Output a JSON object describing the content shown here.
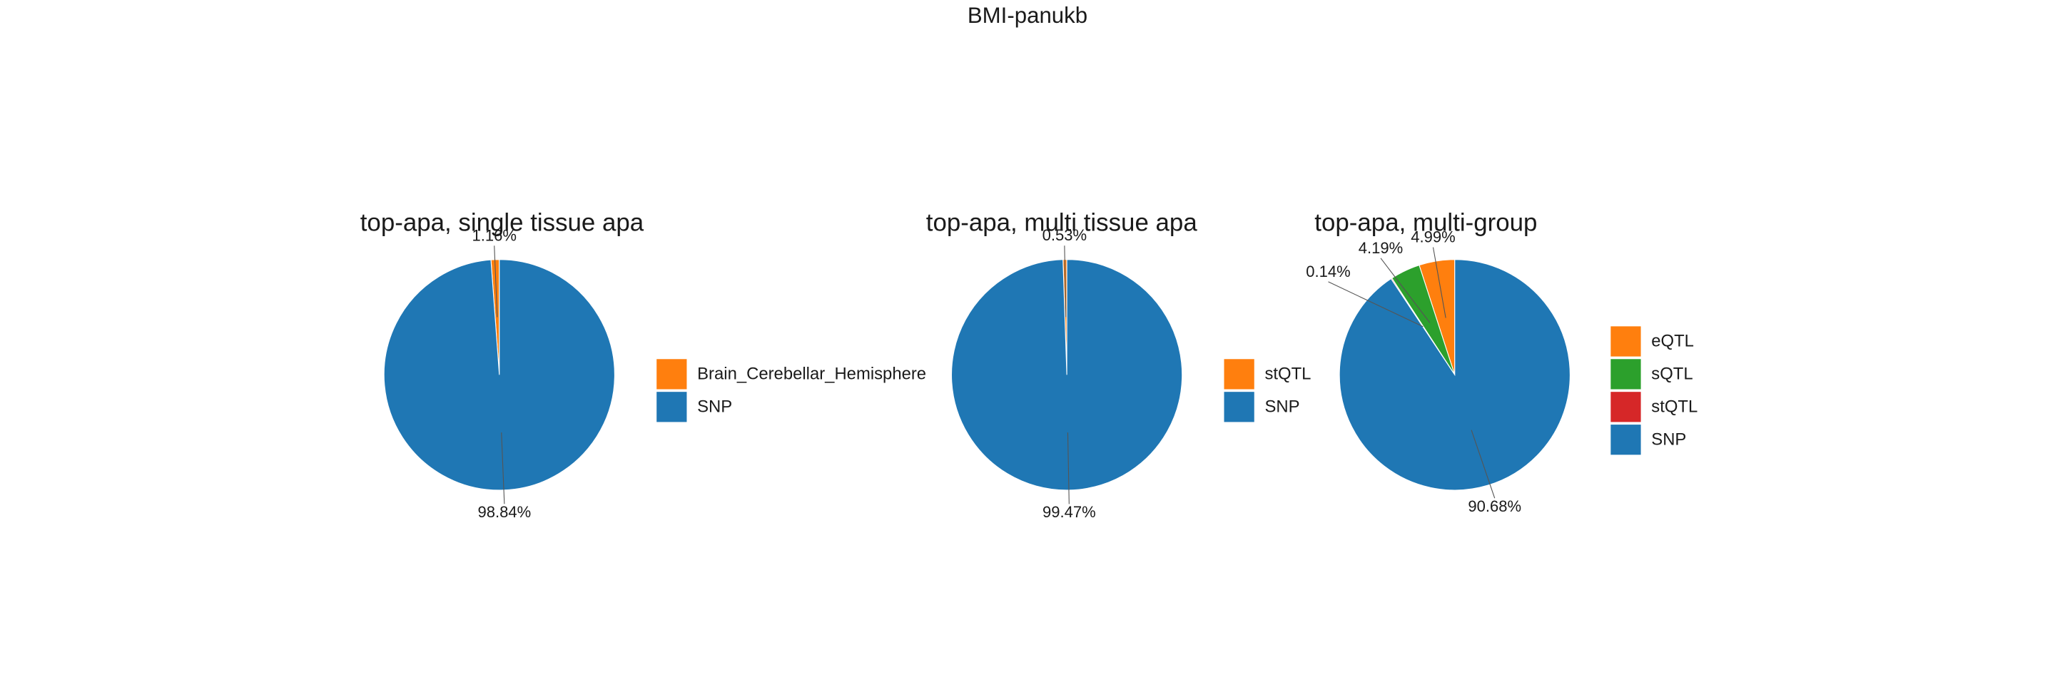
{
  "title": "BMI-panukb",
  "chart_data": [
    {
      "type": "pie",
      "title": "top-apa, single tissue apa",
      "categories": [
        "Brain_Cerebellar_Hemisphere",
        "SNP"
      ],
      "values": [
        1.16,
        98.84
      ],
      "value_labels": [
        "1.16%",
        "98.84%"
      ],
      "colors": [
        "#ff7f0e",
        "#1f77b4"
      ]
    },
    {
      "type": "pie",
      "title": "top-apa, multi tissue apa",
      "categories": [
        "stQTL",
        "SNP"
      ],
      "values": [
        0.53,
        99.47
      ],
      "value_labels": [
        "0.53%",
        "99.47%"
      ],
      "colors": [
        "#ff7f0e",
        "#1f77b4"
      ]
    },
    {
      "type": "pie",
      "title": "top-apa, multi-group",
      "categories": [
        "eQTL",
        "sQTL",
        "stQTL",
        "SNP"
      ],
      "values": [
        4.99,
        4.19,
        0.14,
        90.68
      ],
      "value_labels": [
        "4.99%",
        "4.19%",
        "0.14%",
        "90.68%"
      ],
      "colors": [
        "#ff7f0e",
        "#2ca02c",
        "#d62728",
        "#1f77b4"
      ]
    }
  ]
}
